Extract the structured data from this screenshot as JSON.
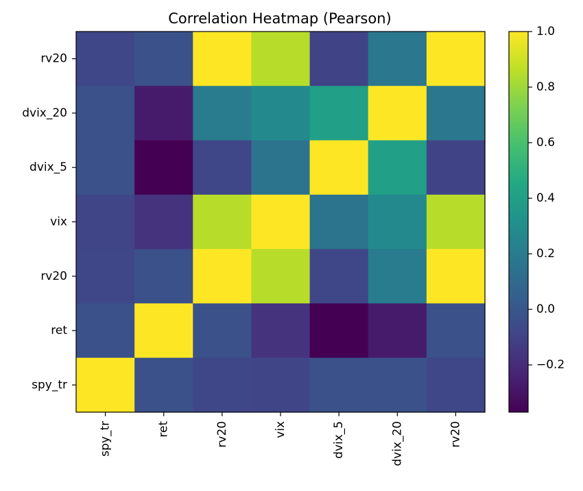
{
  "chart_data": {
    "type": "heatmap",
    "title": "Correlation Heatmap (Pearson)",
    "xlabel": "",
    "ylabel": "",
    "x_labels": [
      "spy_tr",
      "ret",
      "rv20",
      "vix",
      "dvix_5",
      "dvix_20",
      "rv20"
    ],
    "y_labels": [
      "rv20",
      "dvix_20",
      "dvix_5",
      "vix",
      "rv20",
      "ret",
      "spy_tr"
    ],
    "values": [
      [
        -0.08,
        -0.03,
        1.0,
        0.85,
        -0.1,
        0.17,
        1.0
      ],
      [
        -0.03,
        -0.27,
        0.2,
        0.27,
        0.4,
        1.0,
        0.17
      ],
      [
        -0.03,
        -0.37,
        -0.08,
        0.15,
        1.0,
        0.4,
        -0.1
      ],
      [
        -0.09,
        -0.17,
        0.85,
        1.0,
        0.15,
        0.27,
        0.85
      ],
      [
        -0.08,
        -0.03,
        1.0,
        0.85,
        -0.08,
        0.2,
        1.0
      ],
      [
        -0.03,
        1.0,
        -0.03,
        -0.17,
        -0.37,
        -0.27,
        -0.03
      ],
      [
        1.0,
        -0.03,
        -0.08,
        -0.09,
        -0.03,
        -0.03,
        -0.08
      ]
    ],
    "colorbar": {
      "colormap": "viridis",
      "vmin": -0.37,
      "vmax": 1.0,
      "ticks": [
        -0.2,
        0.0,
        0.2,
        0.4,
        0.6,
        0.8,
        1.0
      ],
      "tick_labels": [
        "−0.2",
        "0.0",
        "0.2",
        "0.4",
        "0.6",
        "0.8",
        "1.0"
      ]
    },
    "grid": false
  }
}
